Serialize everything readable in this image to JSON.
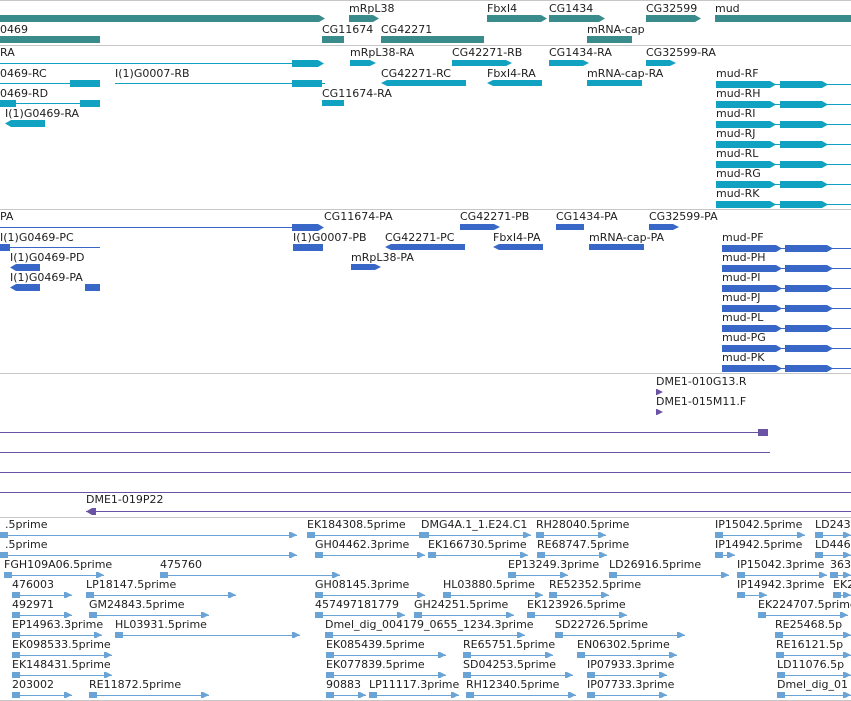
{
  "colors": {
    "background": "#ffffff",
    "separator": "#c7c7c7",
    "label": "#1e1e1e",
    "gene": "#3a8c8c",
    "transcript_flybase": "#10a2c0",
    "transcript_refseq": "#3867c8",
    "clone": "#6a52a5",
    "est": "#6aa3d6"
  },
  "tracks": [
    {
      "name": "genes",
      "features": [
        {
          "label": "mRpL38"
        },
        {
          "label": "FbxI4"
        },
        {
          "label": "CG1434"
        },
        {
          "label": "CG32599"
        },
        {
          "label": "mud"
        },
        {
          "label": "0469"
        },
        {
          "label": "CG11674"
        },
        {
          "label": "CG42271"
        },
        {
          "label": "mRNA-cap"
        }
      ]
    },
    {
      "name": "flybase-transcripts",
      "features": [
        {
          "label": "RA"
        },
        {
          "label": "mRpL38-RA"
        },
        {
          "label": "CG42271-RB"
        },
        {
          "label": "CG1434-RA"
        },
        {
          "label": "CG32599-RA"
        },
        {
          "label": "0469-RC"
        },
        {
          "label": "I(1)G0007-RB"
        },
        {
          "label": "CG42271-RC"
        },
        {
          "label": "FbxI4-RA"
        },
        {
          "label": "mRNA-cap-RA"
        },
        {
          "label": "mud-RF"
        },
        {
          "label": "0469-RD"
        },
        {
          "label": "CG11674-RA"
        },
        {
          "label": "mud-RH"
        },
        {
          "label": "I(1)G0469-RA"
        },
        {
          "label": "mud-RI"
        },
        {
          "label": "mud-RJ"
        },
        {
          "label": "mud-RL"
        },
        {
          "label": "mud-RG"
        },
        {
          "label": "mud-RK"
        }
      ]
    },
    {
      "name": "refseq-transcripts",
      "features": [
        {
          "label": "PA"
        },
        {
          "label": "CG11674-PA"
        },
        {
          "label": "CG42271-PB"
        },
        {
          "label": "CG1434-PA"
        },
        {
          "label": "CG32599-PA"
        },
        {
          "label": "I(1)G0469-PC"
        },
        {
          "label": "I(1)G0007-PB"
        },
        {
          "label": "CG42271-PC"
        },
        {
          "label": "FbxI4-PA"
        },
        {
          "label": "mRNA-cap-PA"
        },
        {
          "label": "mud-PF"
        },
        {
          "label": "I(1)G0469-PD"
        },
        {
          "label": "mRpL38-PA"
        },
        {
          "label": "mud-PH"
        },
        {
          "label": "I(1)G0469-PA"
        },
        {
          "label": "mud-PI"
        },
        {
          "label": "mud-PJ"
        },
        {
          "label": "mud-PL"
        },
        {
          "label": "mud-PG"
        },
        {
          "label": "mud-PK"
        }
      ]
    },
    {
      "name": "clones",
      "features": [
        {
          "label": "DME1-010G13.R"
        },
        {
          "label": "DME1-015M11.F"
        },
        {
          "label": "DME1-019P22"
        }
      ]
    },
    {
      "name": "ests",
      "features": [
        {
          "label": ".5prime"
        },
        {
          "label": "EK184308.5prime"
        },
        {
          "label": "DMG4A.1_1.E24.C1"
        },
        {
          "label": "RH28040.5prime"
        },
        {
          "label": "IP15042.5prime"
        },
        {
          "label": "LD243"
        },
        {
          "label": ".5prime"
        },
        {
          "label": "GH04462.3prime"
        },
        {
          "label": "EK166730.5prime"
        },
        {
          "label": "RE68747.5prime"
        },
        {
          "label": "IP14942.5prime"
        },
        {
          "label": "LD446"
        },
        {
          "label": "FGH109A06.5prime"
        },
        {
          "label": "475760"
        },
        {
          "label": "EP13249.3prime"
        },
        {
          "label": "LD26916.5prime"
        },
        {
          "label": "IP15042.3prime"
        },
        {
          "label": "363"
        },
        {
          "label": "476003"
        },
        {
          "label": "LP18147.5prime"
        },
        {
          "label": "GH08145.3prime"
        },
        {
          "label": "HL03880.5prime"
        },
        {
          "label": "RE52352.5prime"
        },
        {
          "label": "IP14942.3prime"
        },
        {
          "label": "EK2"
        },
        {
          "label": "492971"
        },
        {
          "label": "GM24843.5prime"
        },
        {
          "label": "457497181779"
        },
        {
          "label": "GH24251.5prime"
        },
        {
          "label": "EK123926.5prime"
        },
        {
          "label": "EK224707.5prime"
        },
        {
          "label": "EP14963.3prime"
        },
        {
          "label": "HL03931.5prime"
        },
        {
          "label": "Dmel_dig_004179_0655_1234.3prime"
        },
        {
          "label": "SD22726.5prime"
        },
        {
          "label": "RE25468.5p"
        },
        {
          "label": "EK098533.5prime"
        },
        {
          "label": "EK085439.5prime"
        },
        {
          "label": "RE65751.5prime"
        },
        {
          "label": "EN06302.5prime"
        },
        {
          "label": "RE16121.5p"
        },
        {
          "label": "EK148431.5prime"
        },
        {
          "label": "EK077839.5prime"
        },
        {
          "label": "SD04253.5prime"
        },
        {
          "label": "IP07933.3prime"
        },
        {
          "label": "LD11076.5p"
        },
        {
          "label": "203002"
        },
        {
          "label": "RE11872.5prime"
        },
        {
          "label": "90883"
        },
        {
          "label": "LP11117.3prime"
        },
        {
          "label": "RH12340.5prime"
        },
        {
          "label": "IP07733.3prime"
        },
        {
          "label": "Dmel_dig_01"
        }
      ]
    }
  ]
}
